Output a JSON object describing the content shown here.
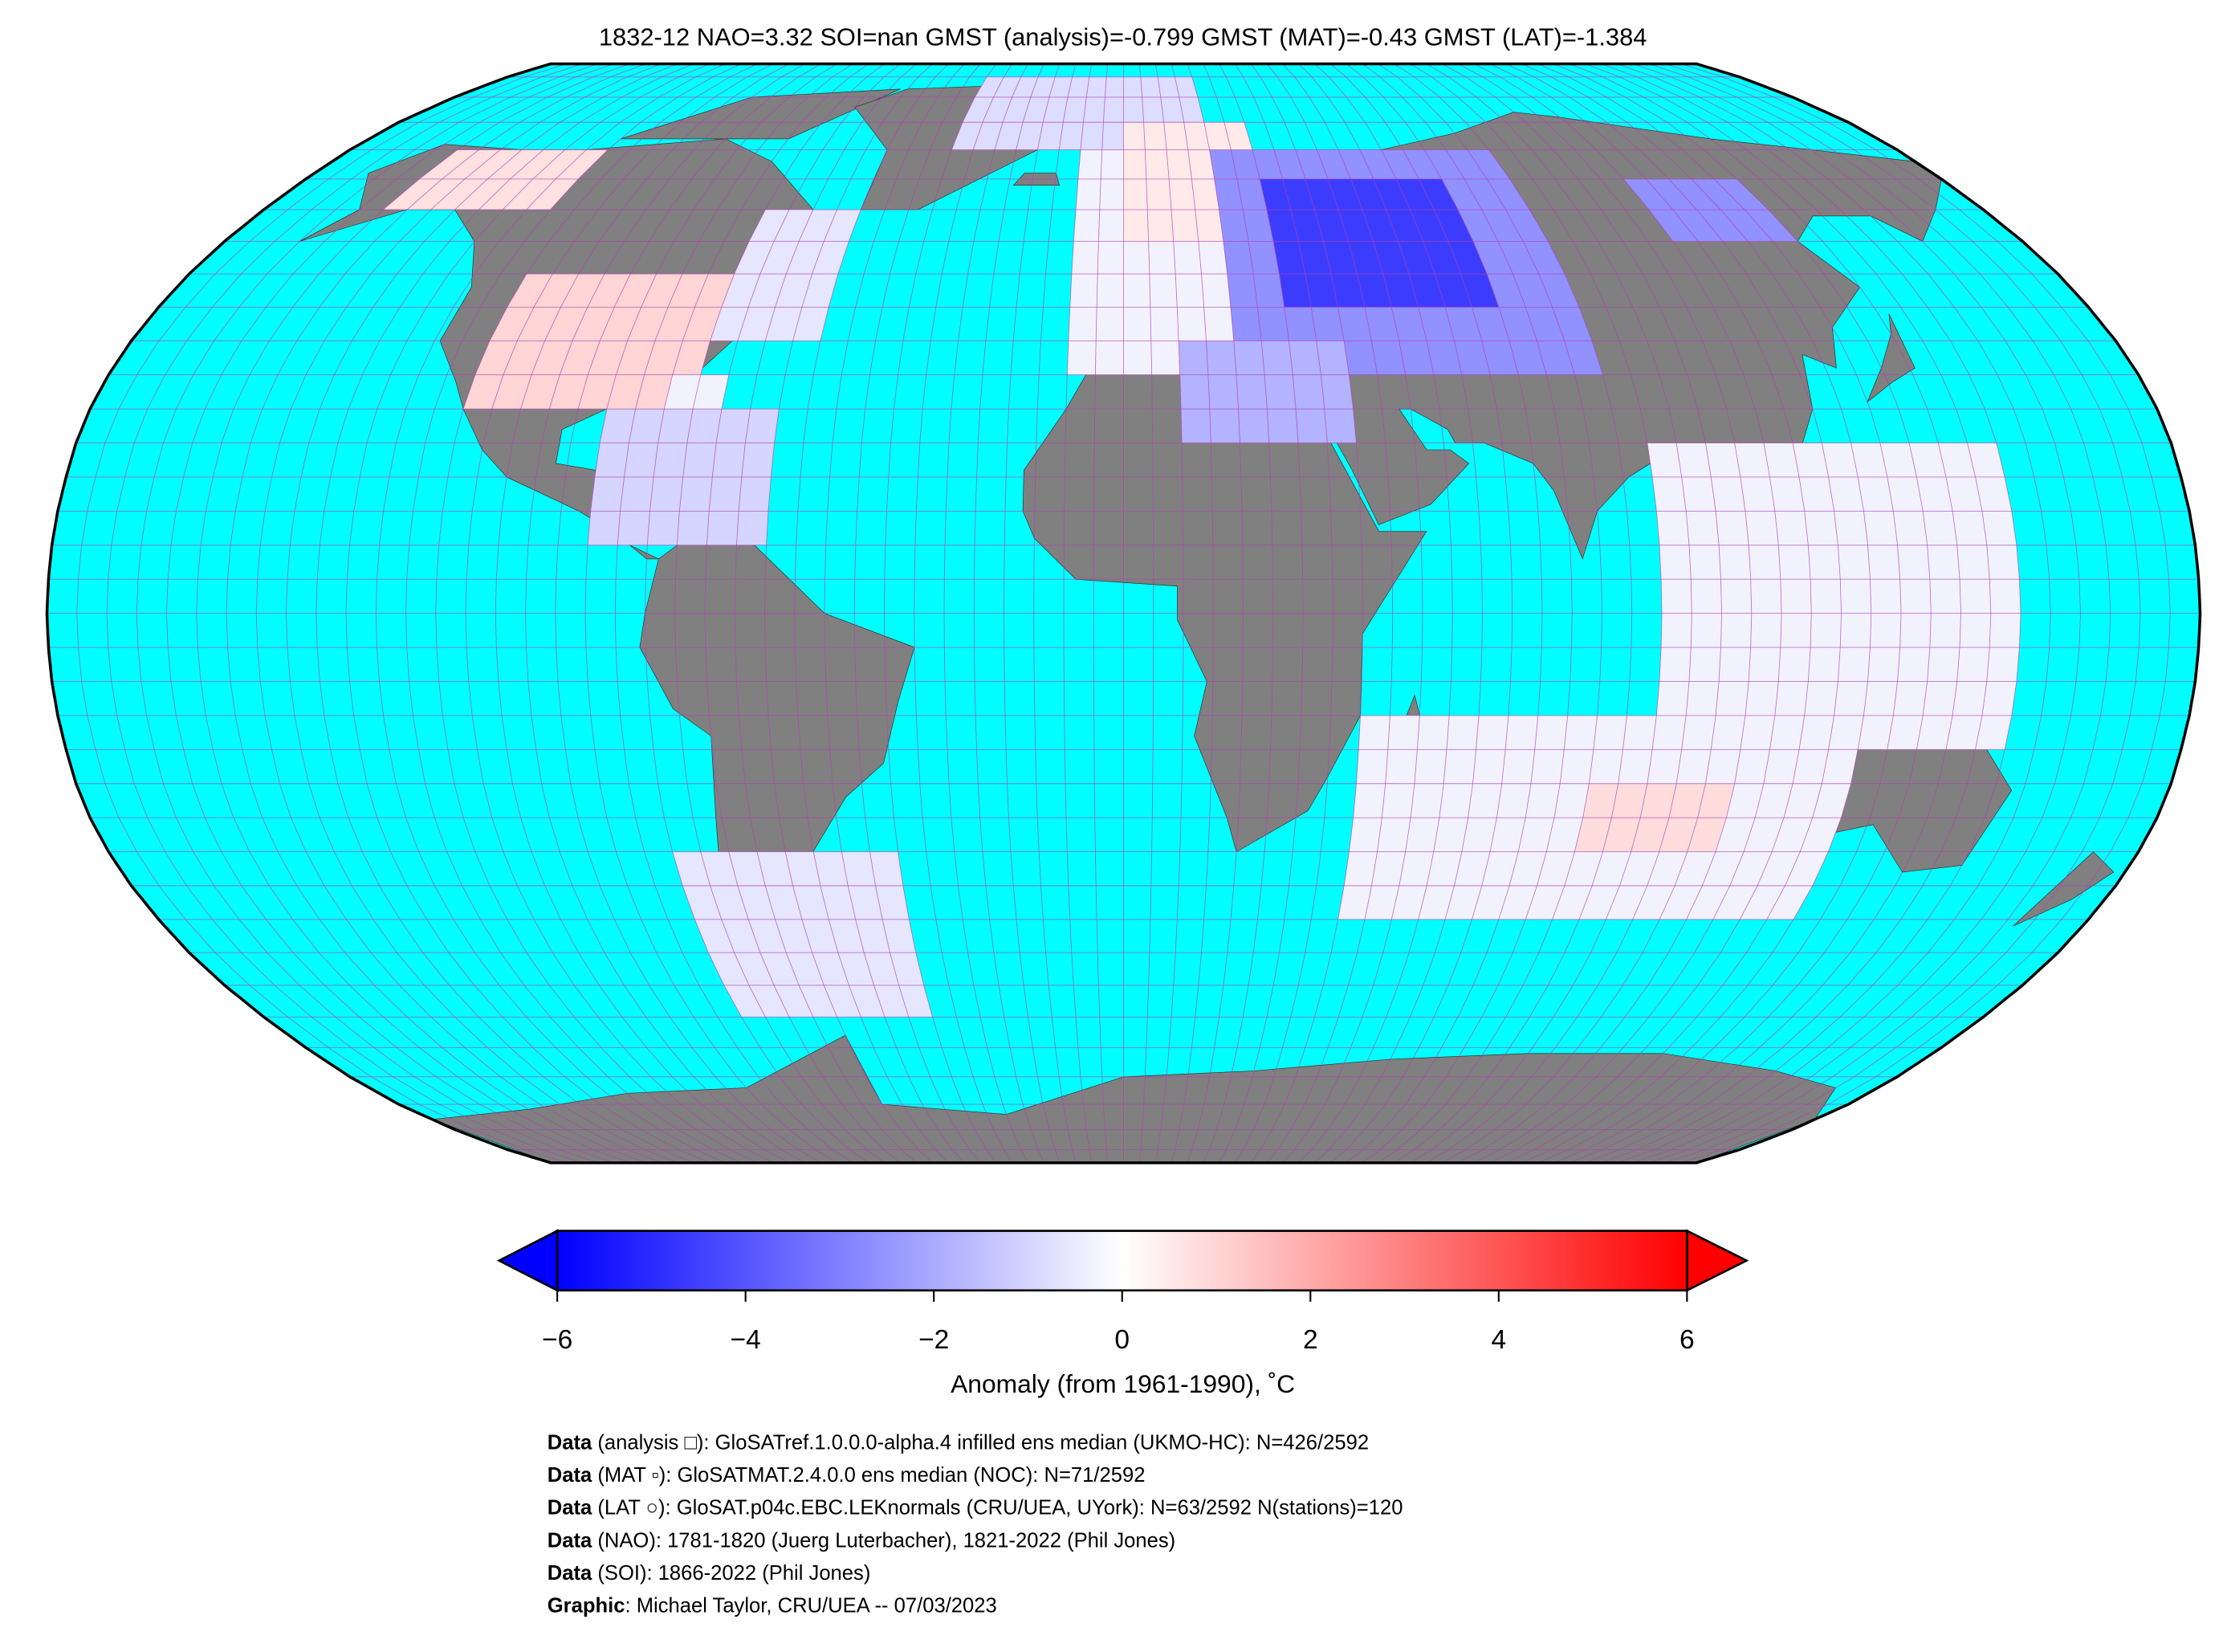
{
  "title": "1832-12 NAO=3.32 SOI=nan GMST (analysis)=-0.799 GMST (MAT)=-0.43 GMST (LAT)=-1.384",
  "map": {
    "projection": "Robinson",
    "colors": {
      "ocean": "#00ffff",
      "land": "#808080",
      "gridline": "#b040b0",
      "outline": "#000000"
    },
    "grid_spacing_deg": 5,
    "anomaly_regions": [
      {
        "lon": [
          -40,
          20
        ],
        "lat": [
          70,
          85
        ],
        "anomaly": -0.8
      },
      {
        "lon": [
          -155,
          -120
        ],
        "lat": [
          60,
          70
        ],
        "anomaly": 0.7
      },
      {
        "lon": [
          -115,
          -75
        ],
        "lat": [
          30,
          50
        ],
        "anomaly": 1.0
      },
      {
        "lon": [
          -75,
          -55
        ],
        "lat": [
          40,
          60
        ],
        "anomaly": -0.6
      },
      {
        "lon": [
          -80,
          -70
        ],
        "lat": [
          25,
          35
        ],
        "anomaly": -0.3
      },
      {
        "lon": [
          -90,
          -60
        ],
        "lat": [
          10,
          30
        ],
        "anomaly": -1.0
      },
      {
        "lon": [
          -10,
          20
        ],
        "lat": [
          35,
          70
        ],
        "anomaly": -0.3
      },
      {
        "lon": [
          0,
          30
        ],
        "lat": [
          55,
          75
        ],
        "anomaly": 0.5
      },
      {
        "lon": [
          20,
          85
        ],
        "lat": [
          35,
          70
        ],
        "anomaly": -2.6
      },
      {
        "lon": [
          30,
          70
        ],
        "lat": [
          45,
          65
        ],
        "anomaly": -4.6
      },
      {
        "lon": [
          10,
          40
        ],
        "lat": [
          25,
          40
        ],
        "anomaly": -1.8
      },
      {
        "lon": [
          110,
          135
        ],
        "lat": [
          55,
          65
        ],
        "anomaly": -2.6
      },
      {
        "lon": [
          90,
          150
        ],
        "lat": [
          -20,
          25
        ],
        "anomaly": -0.3
      },
      {
        "lon": [
          40,
          125
        ],
        "lat": [
          -45,
          -15
        ],
        "anomaly": -0.3
      },
      {
        "lon": [
          80,
          105
        ],
        "lat": [
          -35,
          -25
        ],
        "anomaly": 0.8
      },
      {
        "lon": [
          -80,
          -40
        ],
        "lat": [
          -60,
          -35
        ],
        "anomaly": -0.6
      }
    ]
  },
  "colorbar": {
    "min": -6,
    "max": 6,
    "colors": {
      "low": "#0000ff",
      "mid": "#ffffff",
      "high": "#ff0000"
    },
    "ticks": [
      "−6",
      "−4",
      "−2",
      "0",
      "2",
      "4",
      "6"
    ],
    "label": "Anomaly (from 1961-1990), ˚C"
  },
  "footer": [
    {
      "bold": "Data",
      "text": " (analysis □): GloSATref.1.0.0.0-alpha.4 infilled ens median (UKMO-HC): N=426/2592"
    },
    {
      "bold": "Data",
      "text": " (MAT ▫): GloSATMAT.2.4.0.0 ens median (NOC): N=71/2592"
    },
    {
      "bold": "Data",
      "text": " (LAT ○): GloSAT.p04c.EBC.LEKnormals (CRU/UEA, UYork): N=63/2592 N(stations)=120"
    },
    {
      "bold": "Data",
      "text": " (NAO): 1781-1820 (Juerg Luterbacher), 1821-2022 (Phil Jones)"
    },
    {
      "bold": "Data",
      "text": " (SOI): 1866-2022 (Phil Jones)"
    },
    {
      "bold": "Graphic",
      "text": ": Michael Taylor, CRU/UEA -- 07/03/2023"
    }
  ]
}
